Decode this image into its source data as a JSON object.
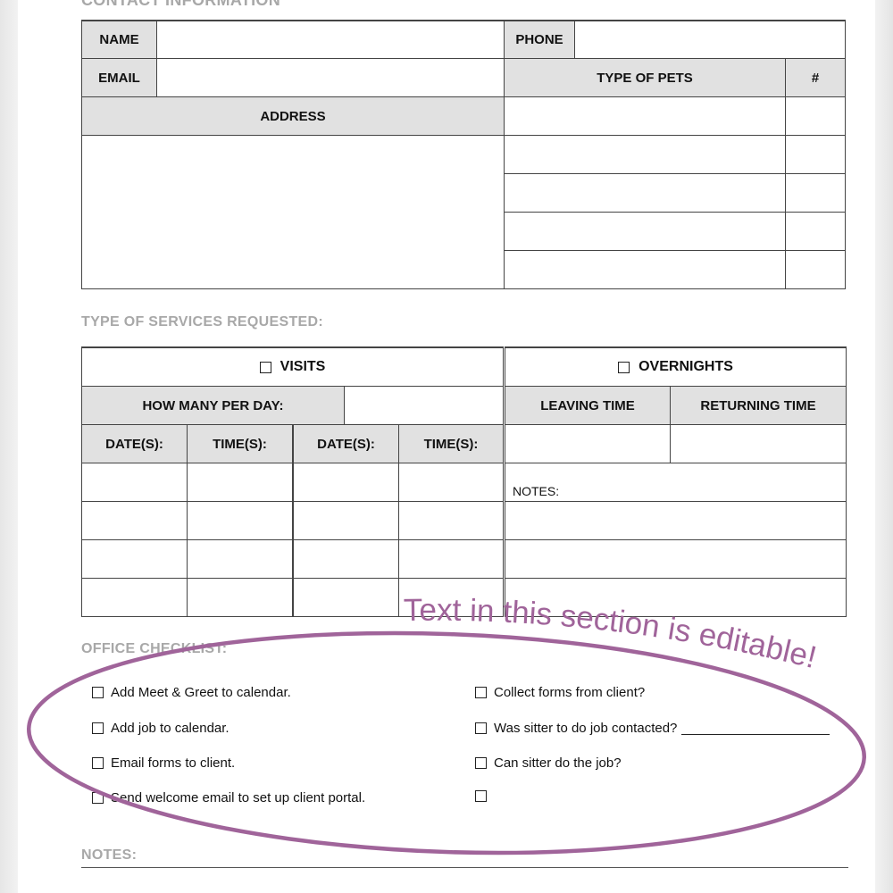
{
  "contact": {
    "heading": "CONTACT INFORMATION",
    "name": "NAME",
    "phone": "PHONE",
    "email": "EMAIL",
    "type_of_pets": "TYPE OF PETS",
    "count": "#",
    "address": "ADDRESS"
  },
  "services": {
    "heading": "TYPE OF SERVICES REQUESTED:",
    "visits": "VISITS",
    "overnights": "OVERNIGHTS",
    "how_many": "HOW MANY PER DAY:",
    "leaving": "LEAVING TIME",
    "returning": "RETURNING TIME",
    "dates": "DATE(S):",
    "times": "TIME(S):",
    "notes": "NOTES:"
  },
  "checklist": {
    "heading": "OFFICE CHECKLIST:",
    "left": [
      "Add Meet & Greet to calendar.",
      "Add job to calendar.",
      "Email forms to client.",
      "Send welcome email to set up client portal."
    ],
    "right": [
      "Collect forms from client?",
      "Was sitter to do job contacted?",
      "Can sitter do the job?",
      ""
    ]
  },
  "notes": {
    "heading": "NOTES:"
  },
  "annotation": {
    "text": "Text in this section is editable!",
    "color": "#a0649a"
  }
}
